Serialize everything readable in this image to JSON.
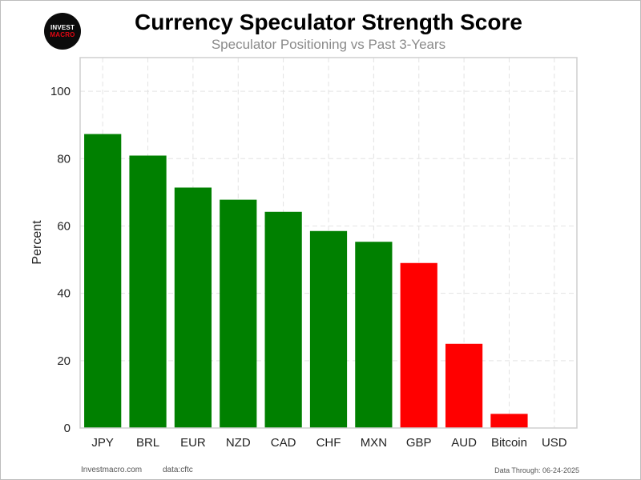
{
  "logo": {
    "line1": "INVEST",
    "line2": "MACRO"
  },
  "footer": {
    "site": "Investmacro.com",
    "source": "data:cftc",
    "data_through": "Data Through: 06-24-2025"
  },
  "colors": {
    "positive": "#008000",
    "negative": "#ff0000",
    "grid": "#e3e3e3",
    "frame": "#cfcfcf"
  },
  "chart_data": {
    "type": "bar",
    "title": "Currency Speculator Strength Score",
    "subtitle": "Speculator Positioning vs Past 3-Years",
    "xlabel": "",
    "ylabel": "Percent",
    "categories": [
      "JPY",
      "BRL",
      "EUR",
      "NZD",
      "CAD",
      "CHF",
      "MXN",
      "GBP",
      "AUD",
      "Bitcoin",
      "USD"
    ],
    "values": [
      87.3,
      80.9,
      71.4,
      67.8,
      64.2,
      58.5,
      55.3,
      49.0,
      25.0,
      4.2,
      0
    ],
    "bar_colors": [
      "#008000",
      "#008000",
      "#008000",
      "#008000",
      "#008000",
      "#008000",
      "#008000",
      "#ff0000",
      "#ff0000",
      "#ff0000",
      "#ff0000"
    ],
    "ylim": [
      0,
      110
    ],
    "yticks": [
      0,
      20,
      40,
      60,
      80,
      100
    ],
    "grid": true,
    "legend": false
  }
}
